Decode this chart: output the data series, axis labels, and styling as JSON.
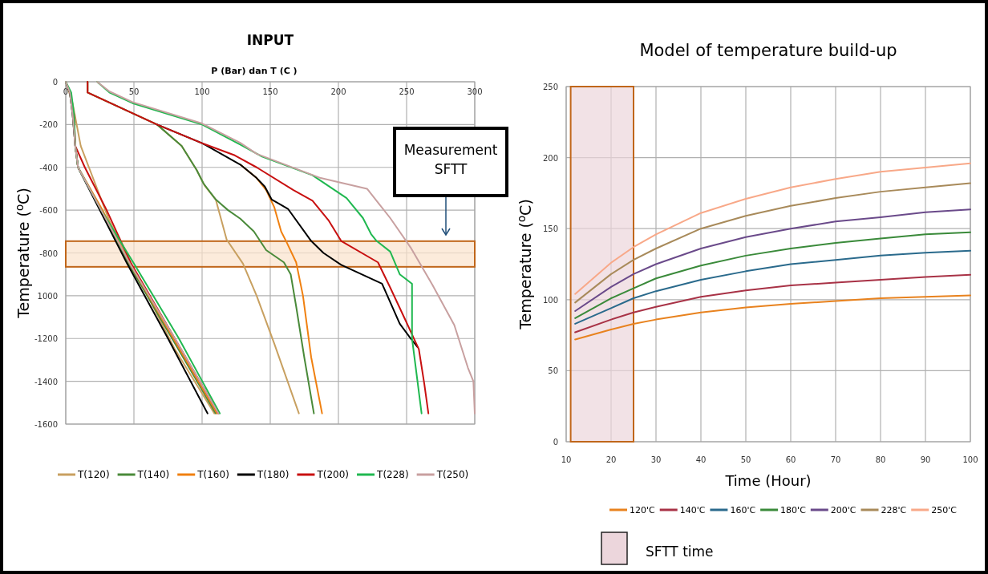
{
  "chart_data": [
    {
      "type": "line",
      "title": "INPUT",
      "xlabel": "P  (Bar) dan T (C )",
      "ylabel": "Temperature ($^{o}$C)",
      "xlim": [
        0,
        300
      ],
      "xticks": [
        0,
        50,
        100,
        150,
        200,
        250,
        300
      ],
      "ylim": [
        -1600,
        0
      ],
      "yticks": [
        0,
        -200,
        -400,
        -600,
        -800,
        {
          "value": -1000,
          "label": "1000"
        },
        -1200,
        -1400,
        -1600
      ],
      "grid": true,
      "legend": "bottom",
      "bands": [
        {
          "axis": "y",
          "from": -865,
          "to": -745,
          "color": "#fbe3cc"
        }
      ],
      "annotations": [
        "Measurement SFTT"
      ],
      "series": [
        {
          "name": "T(120)",
          "color": "#c8a060",
          "x": [
            16,
            16,
            67,
            85,
            96,
            102,
            110,
            118,
            130,
            140,
            153,
            171
          ],
          "values": [
            0,
            -50,
            -200,
            -300,
            -412,
            -487,
            -550,
            -737,
            -850,
            -1000,
            -1225,
            -1550
          ]
        },
        {
          "name": "T(140)",
          "color": "#4a8a3a",
          "x": [
            16,
            16,
            67,
            85,
            96,
            101,
            110,
            119,
            128,
            138,
            147,
            160,
            165,
            169,
            175,
            182
          ],
          "values": [
            0,
            -50,
            -200,
            -300,
            -412,
            -475,
            -550,
            -600,
            -640,
            -700,
            -787,
            -844,
            -900,
            -1050,
            -1290,
            -1550
          ]
        },
        {
          "name": "T(160)",
          "color": "#f08010",
          "x": [
            128,
            140,
            147,
            153,
            158,
            162,
            169,
            174,
            180,
            188
          ],
          "values": [
            -387,
            -450,
            -506,
            -587,
            -700,
            -750,
            -844,
            -1000,
            -1287,
            -1550
          ]
        },
        {
          "name": "T(180)",
          "color": "#000000",
          "x": [
            67,
            100,
            128,
            140,
            146,
            151,
            163,
            180,
            189,
            202,
            232,
            245,
            253,
            258
          ],
          "values": [
            -200,
            -287,
            -387,
            -450,
            -490,
            -550,
            -594,
            -744,
            -800,
            -856,
            -944,
            -1131,
            -1200,
            -1240
          ]
        },
        {
          "name": "T(200)",
          "color": "#c81010",
          "x": [
            16,
            16,
            67,
            100,
            124,
            140,
            167,
            181,
            193,
            202,
            229,
            238,
            249,
            259,
            263,
            266
          ],
          "values": [
            0,
            -50,
            -200,
            -287,
            -344,
            -400,
            -506,
            -556,
            -650,
            -744,
            -844,
            -962,
            -1112,
            -1250,
            -1412,
            -1550
          ]
        },
        {
          "name": "T(228)",
          "color": "#20b850",
          "x": [
            23,
            32,
            49,
            100,
            128,
            144,
            181,
            206,
            218,
            224,
            228,
            238,
            245,
            254,
            254,
            261
          ],
          "values": [
            0,
            -50,
            -100,
            -200,
            -294,
            -350,
            -437,
            -544,
            -637,
            -712,
            -744,
            -794,
            -900,
            -944,
            -1200,
            -1550
          ]
        },
        {
          "name": "T(250)",
          "color": "#c8a0a0",
          "x": [
            23,
            32,
            49,
            100,
            128,
            140,
            187,
            221,
            238,
            253,
            269,
            285,
            295,
            299,
            300
          ],
          "values": [
            0,
            -45,
            -95,
            -195,
            -285,
            -337,
            -450,
            -500,
            -637,
            -775,
            -950,
            -1137,
            -1337,
            -1400,
            -1550
          ]
        },
        {
          "color": "#c8a060",
          "x": [
            0,
            5,
            11,
            17,
            32,
            48,
            80,
            109
          ],
          "values": [
            0,
            -100,
            -300,
            -400,
            -650,
            -850,
            -1250,
            -1550
          ]
        },
        {
          "color": "#4a8a3a",
          "x": [
            0,
            3,
            5,
            7,
            9,
            26,
            46,
            78,
            110
          ],
          "values": [
            0,
            -50,
            -150,
            -300,
            -400,
            -600,
            -850,
            -1200,
            -1550
          ]
        },
        {
          "color": "#f08010",
          "x": [
            7,
            9,
            27,
            47,
            79,
            111
          ],
          "values": [
            -300,
            -400,
            -600,
            -850,
            -1200,
            -1550
          ]
        },
        {
          "color": "#000000",
          "x": [
            0,
            3,
            5,
            7,
            9,
            25,
            45,
            75,
            104
          ],
          "values": [
            0,
            -50,
            -150,
            -300,
            -400,
            -600,
            -850,
            -1200,
            -1550
          ]
        },
        {
          "color": "#c81010",
          "x": [
            6,
            7,
            14,
            30,
            48,
            80,
            112
          ],
          "values": [
            -150,
            -300,
            -400,
            -600,
            -850,
            -1200,
            -1550
          ]
        },
        {
          "color": "#20b850",
          "x": [
            0,
            4,
            6,
            7,
            9,
            26,
            50,
            83,
            113
          ],
          "values": [
            0,
            -50,
            -150,
            -300,
            -400,
            -600,
            -850,
            -1200,
            -1550
          ]
        },
        {
          "color": "#c8a0a0",
          "x": [
            0,
            3,
            5,
            7,
            9,
            26,
            47,
            80,
            112
          ],
          "values": [
            0,
            -50,
            -150,
            -300,
            -400,
            -600,
            -850,
            -1200,
            -1550
          ]
        }
      ]
    },
    {
      "type": "line",
      "title": "Model of temperature build-up",
      "xlabel": "Time (Hour)",
      "ylabel": "Temperature ($^{o}$C)",
      "xlim": [
        10,
        100
      ],
      "xticks": [
        10,
        20,
        30,
        40,
        50,
        60,
        70,
        80,
        90,
        100
      ],
      "ylim": [
        0,
        250
      ],
      "yticks": [
        0,
        50,
        100,
        150,
        200,
        250
      ],
      "grid": true,
      "legend": "bottom",
      "bands": [
        {
          "axis": "x",
          "from": 11,
          "to": 25,
          "label": "SFTT time",
          "color": "#ecd6dc"
        }
      ],
      "x": [
        12,
        20,
        25,
        30,
        40,
        50,
        60,
        70,
        80,
        90,
        100
      ],
      "series": [
        {
          "name": "120'C",
          "color": "#e8821e",
          "values": [
            72,
            79,
            83,
            86,
            91,
            94.5,
            97,
            99,
            101,
            102,
            103
          ]
        },
        {
          "name": "140'C",
          "color": "#a83246",
          "values": [
            77,
            86,
            91,
            95,
            102,
            106.5,
            110,
            112,
            114,
            116,
            117.5
          ]
        },
        {
          "name": "160'C",
          "color": "#2a6a8c",
          "values": [
            83,
            94,
            101,
            106,
            114,
            120,
            125,
            128,
            131,
            133,
            134.5
          ]
        },
        {
          "name": "180'C",
          "color": "#3a8a3a",
          "values": [
            87,
            101,
            108,
            115,
            124,
            131,
            136,
            140,
            143,
            146,
            147.5
          ]
        },
        {
          "name": "200'C",
          "color": "#6a4a8a",
          "values": [
            92,
            109,
            118,
            125,
            136,
            144,
            150,
            155,
            158,
            161.5,
            163.5
          ]
        },
        {
          "name": "228'C",
          "color": "#a88a5a",
          "values": [
            98,
            118,
            128,
            136,
            150,
            159,
            166,
            171.5,
            176,
            179,
            182
          ]
        },
        {
          "name": "250'C",
          "color": "#f8a888",
          "values": [
            104,
            126,
            137,
            146,
            161,
            171,
            179,
            185,
            190,
            193,
            196
          ]
        }
      ]
    }
  ]
}
